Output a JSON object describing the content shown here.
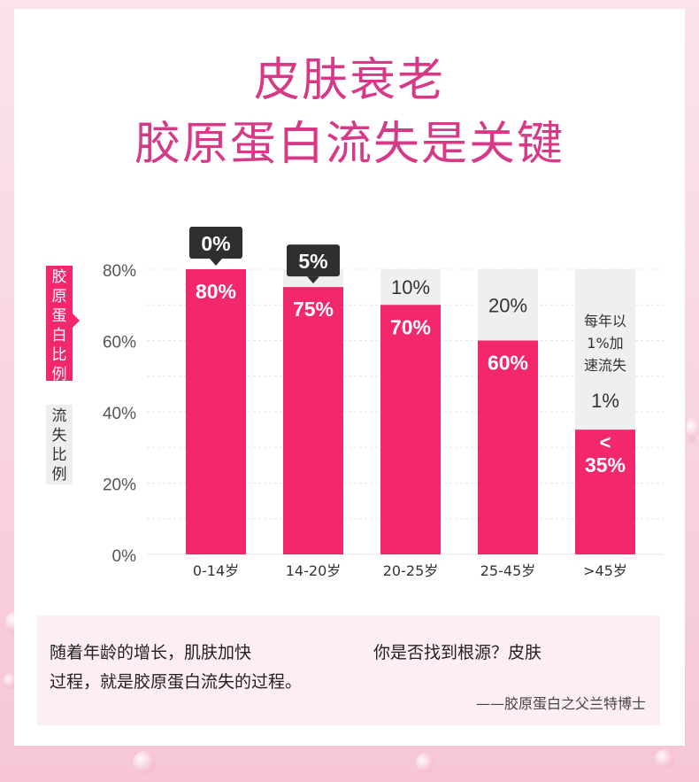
{
  "title": {
    "line1": "皮肤衰老",
    "line2": "胶原蛋白流失是关键"
  },
  "legend": {
    "primary_label": "胶原蛋白比例",
    "secondary_label": "流失比例",
    "primary_color": "#f2286a",
    "secondary_color": "#eeeeee"
  },
  "chart_data": {
    "type": "bar",
    "categories": [
      "0-14岁",
      "14-20岁",
      "20-25岁",
      "25-45岁",
      ">45岁"
    ],
    "series": [
      {
        "name": "胶原蛋白比例",
        "values": [
          80,
          75,
          70,
          60,
          35
        ],
        "labels": [
          "80%",
          "75%",
          "70%",
          "60%",
          "35%"
        ]
      },
      {
        "name": "流失比例",
        "values": [
          0,
          5,
          10,
          20,
          1
        ],
        "labels": [
          "0%",
          "5%",
          "10%",
          "20%",
          "1%"
        ]
      }
    ],
    "y_ticks": [
      "0%",
      "20%",
      "40%",
      "60%",
      "80%"
    ],
    "ylim": [
      0,
      80
    ],
    "y_max_background": 80,
    "last_bar_prefix": "<",
    "last_bar_note": "每年以1%加速流失",
    "grid": true
  },
  "quote": {
    "left_text": "随着年龄的增长，肌肤加快过程，就是胶原蛋白流失的过程。",
    "left_line1": "随着年龄的增长，肌肤加快",
    "left_line2": "过程，就是胶原蛋白流失的过程。",
    "right_text": "你是否找到根源？皮肤",
    "attribution": "——胶原蛋白之父兰特博士"
  }
}
